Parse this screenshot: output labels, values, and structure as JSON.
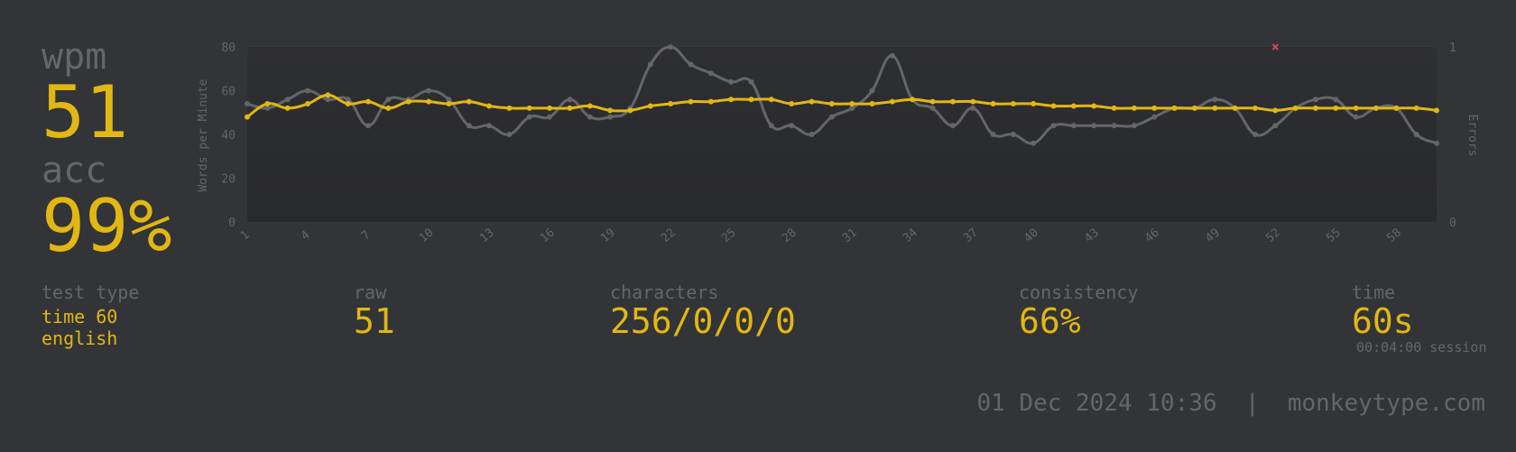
{
  "stats": {
    "wpm_label": "wpm",
    "wpm_value": "51",
    "acc_label": "acc",
    "acc_value": "99%"
  },
  "info": {
    "test_type_label": "test type",
    "test_type_line1": "time 60",
    "test_type_line2": "english",
    "raw_label": "raw",
    "raw_value": "51",
    "characters_label": "characters",
    "characters_value": "256/0/0/0",
    "consistency_label": "consistency",
    "consistency_value": "66%",
    "time_label": "time",
    "time_value": "60s",
    "session_text": "00:04:00 session"
  },
  "footer": {
    "date": "01 Dec 2024 10:36",
    "separator": "|",
    "site": "monkeytype.com"
  },
  "colors": {
    "background": "#323437",
    "accent": "#e2b714",
    "subtle": "#646669",
    "raw_line": "#646669",
    "error": "#ca4754"
  },
  "chart_data": {
    "type": "line",
    "ylabel": "Words per Minute",
    "y2label": "Errors",
    "ylim": [
      0,
      80
    ],
    "y2lim": [
      0,
      1
    ],
    "y_ticks": [
      "0",
      "20",
      "40",
      "60",
      "80"
    ],
    "y2_ticks": [
      "0",
      "1"
    ],
    "x": [
      1,
      2,
      3,
      4,
      5,
      6,
      7,
      8,
      9,
      10,
      11,
      12,
      13,
      14,
      15,
      16,
      17,
      18,
      19,
      20,
      21,
      22,
      23,
      24,
      25,
      26,
      27,
      28,
      29,
      30,
      31,
      32,
      33,
      34,
      35,
      36,
      37,
      38,
      39,
      40,
      41,
      42,
      43,
      44,
      45,
      46,
      47,
      48,
      49,
      50,
      51,
      52,
      53,
      54,
      55,
      56,
      57,
      58,
      59,
      60
    ],
    "x_tick_labels": [
      "1",
      "4",
      "7",
      "10",
      "13",
      "16",
      "19",
      "22",
      "25",
      "28",
      "31",
      "34",
      "37",
      "40",
      "43",
      "46",
      "49",
      "52",
      "55",
      "58"
    ],
    "grid": true,
    "series": [
      {
        "name": "raw",
        "color": "#646669",
        "values": [
          54,
          52,
          56,
          60,
          56,
          56,
          44,
          56,
          56,
          60,
          56,
          44,
          44,
          40,
          48,
          48,
          56,
          48,
          48,
          52,
          72,
          80,
          72,
          68,
          64,
          64,
          44,
          44,
          40,
          48,
          52,
          60,
          76,
          56,
          52,
          44,
          52,
          40,
          40,
          36,
          44,
          44,
          44,
          44,
          44,
          48,
          52,
          52,
          56,
          52,
          40,
          44,
          52,
          56,
          56,
          48,
          52,
          52,
          40,
          36
        ]
      },
      {
        "name": "wpm",
        "color": "#e2b714",
        "values": [
          48,
          54,
          52,
          54,
          58,
          54,
          55,
          52,
          55,
          55,
          54,
          55,
          53,
          52,
          52,
          52,
          52,
          53,
          51,
          51,
          53,
          54,
          55,
          55,
          56,
          56,
          56,
          54,
          55,
          54,
          54,
          54,
          55,
          56,
          55,
          55,
          55,
          54,
          54,
          54,
          53,
          53,
          53,
          52,
          52,
          52,
          52,
          52,
          52,
          52,
          52,
          51,
          52,
          52,
          52,
          52,
          52,
          52,
          52,
          51
        ]
      }
    ],
    "errors": [
      {
        "x": 52,
        "count": 1
      }
    ]
  }
}
